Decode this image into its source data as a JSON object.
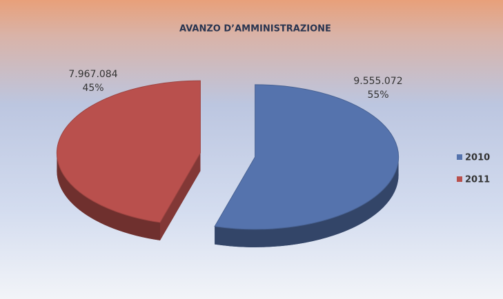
{
  "chart_data": {
    "type": "pie",
    "title": "AVANZO D’AMMINISTRAZIONE",
    "categories": [
      "2010",
      "2011"
    ],
    "values": [
      9555072,
      7967084
    ],
    "value_labels": [
      "9.555.072",
      "7.967.084"
    ],
    "percentages": [
      55,
      45
    ],
    "percentage_labels": [
      "55%",
      "45%"
    ],
    "colors": [
      "#5573ad",
      "#b9504d"
    ],
    "legend": "right"
  }
}
